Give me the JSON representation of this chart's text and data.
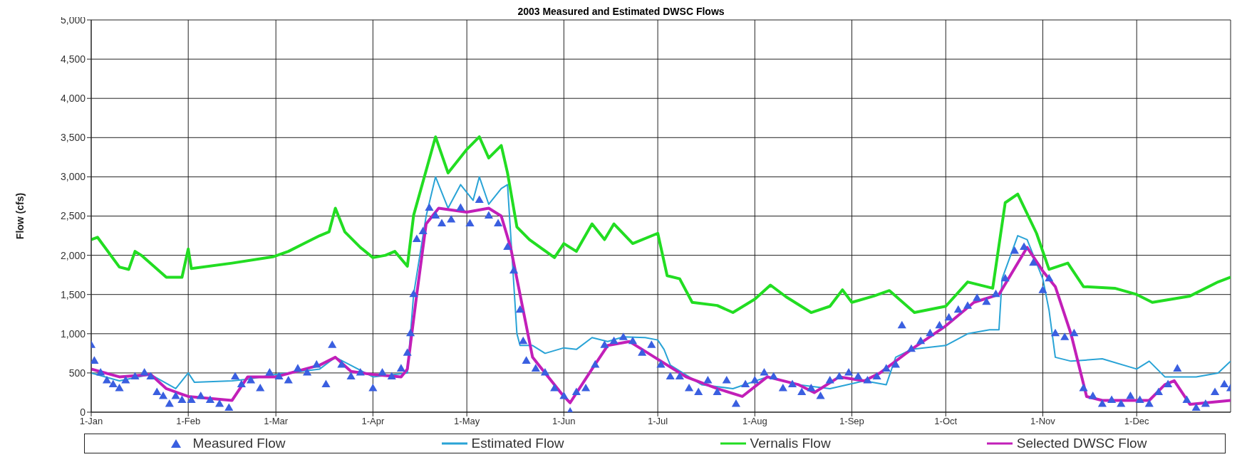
{
  "chart_data": {
    "type": "line",
    "title": "2003 Measured and Estimated DWSC Flows",
    "ylabel": "Flow (cfs)",
    "xlim": [
      "2003-01-01",
      "2003-12-31"
    ],
    "xticks": [
      {
        "value": "2003-01-01",
        "label": "1-Jan"
      },
      {
        "value": "2003-02-01",
        "label": "1-Feb"
      },
      {
        "value": "2003-03-01",
        "label": "1-Mar"
      },
      {
        "value": "2003-04-01",
        "label": "1-Apr"
      },
      {
        "value": "2003-05-01",
        "label": "1-May"
      },
      {
        "value": "2003-06-01",
        "label": "1-Jun"
      },
      {
        "value": "2003-07-01",
        "label": "1-Jul"
      },
      {
        "value": "2003-08-01",
        "label": "1-Aug"
      },
      {
        "value": "2003-09-01",
        "label": "1-Sep"
      },
      {
        "value": "2003-10-01",
        "label": "1-Oct"
      },
      {
        "value": "2003-11-01",
        "label": "1-Nov"
      },
      {
        "value": "2003-12-01",
        "label": "1-Dec"
      }
    ],
    "ylim": [
      0,
      5000
    ],
    "yticks": [
      0,
      500,
      {
        "value": 1000,
        "label": "1,000"
      },
      {
        "value": 1500,
        "label": "1,500"
      },
      {
        "value": 2000,
        "label": "2,000"
      },
      {
        "value": 2500,
        "label": "2,500"
      },
      {
        "value": 3000,
        "label": "3,000"
      },
      {
        "value": 3500,
        "label": "3,500"
      },
      {
        "value": 4000,
        "label": "4,000"
      },
      {
        "value": 4500,
        "label": "4,500"
      },
      {
        "value": 5000,
        "label": "5,000"
      }
    ],
    "grid": true,
    "legend": "bottom",
    "series": [
      {
        "name": "Measured Flow",
        "type": "scatter",
        "marker": "triangle",
        "color": "#3a5fe0",
        "x": [
          "2003-01-01",
          "2003-01-02",
          "2003-01-04",
          "2003-01-06",
          "2003-01-08",
          "2003-01-10",
          "2003-01-12",
          "2003-01-15",
          "2003-01-18",
          "2003-01-20",
          "2003-01-22",
          "2003-01-24",
          "2003-01-26",
          "2003-01-28",
          "2003-01-30",
          "2003-02-02",
          "2003-02-05",
          "2003-02-08",
          "2003-02-11",
          "2003-02-14",
          "2003-02-16",
          "2003-02-18",
          "2003-02-21",
          "2003-02-24",
          "2003-02-27",
          "2003-03-02",
          "2003-03-05",
          "2003-03-08",
          "2003-03-11",
          "2003-03-14",
          "2003-03-17",
          "2003-03-19",
          "2003-03-22",
          "2003-03-25",
          "2003-03-28",
          "2003-04-01",
          "2003-04-04",
          "2003-04-07",
          "2003-04-10",
          "2003-04-12",
          "2003-04-13",
          "2003-04-14",
          "2003-04-15",
          "2003-04-17",
          "2003-04-19",
          "2003-04-21",
          "2003-04-23",
          "2003-04-26",
          "2003-04-29",
          "2003-05-02",
          "2003-05-05",
          "2003-05-08",
          "2003-05-11",
          "2003-05-14",
          "2003-05-16",
          "2003-05-18",
          "2003-05-19",
          "2003-05-20",
          "2003-05-23",
          "2003-05-26",
          "2003-05-29",
          "2003-06-01",
          "2003-06-03",
          "2003-06-05",
          "2003-06-08",
          "2003-06-11",
          "2003-06-14",
          "2003-06-17",
          "2003-06-20",
          "2003-06-23",
          "2003-06-26",
          "2003-06-29",
          "2003-07-02",
          "2003-07-05",
          "2003-07-08",
          "2003-07-11",
          "2003-07-14",
          "2003-07-17",
          "2003-07-20",
          "2003-07-23",
          "2003-07-26",
          "2003-07-29",
          "2003-08-01",
          "2003-08-04",
          "2003-08-07",
          "2003-08-10",
          "2003-08-13",
          "2003-08-16",
          "2003-08-19",
          "2003-08-22",
          "2003-08-25",
          "2003-08-28",
          "2003-08-31",
          "2003-09-03",
          "2003-09-06",
          "2003-09-09",
          "2003-09-12",
          "2003-09-15",
          "2003-09-17",
          "2003-09-20",
          "2003-09-23",
          "2003-09-26",
          "2003-09-29",
          "2003-10-02",
          "2003-10-05",
          "2003-10-08",
          "2003-10-11",
          "2003-10-14",
          "2003-10-17",
          "2003-10-20",
          "2003-10-23",
          "2003-10-26",
          "2003-10-29",
          "2003-11-01",
          "2003-11-03",
          "2003-11-05",
          "2003-11-08",
          "2003-11-11",
          "2003-11-14",
          "2003-11-17",
          "2003-11-20",
          "2003-11-23",
          "2003-11-26",
          "2003-11-29",
          "2003-12-02",
          "2003-12-05",
          "2003-12-08",
          "2003-12-11",
          "2003-12-14",
          "2003-12-17",
          "2003-12-20",
          "2003-12-23",
          "2003-12-26",
          "2003-12-29",
          "2003-12-31"
        ],
        "values": [
          850,
          650,
          500,
          400,
          350,
          300,
          400,
          450,
          500,
          450,
          250,
          200,
          100,
          200,
          150,
          150,
          200,
          150,
          100,
          50,
          450,
          350,
          400,
          300,
          500,
          450,
          400,
          550,
          500,
          600,
          350,
          850,
          600,
          450,
          500,
          300,
          500,
          450,
          550,
          750,
          1000,
          1500,
          2200,
          2300,
          2600,
          2500,
          2400,
          2450,
          2600,
          2400,
          2700,
          2500,
          2400,
          2100,
          1800,
          1300,
          900,
          650,
          550,
          500,
          300,
          200,
          0,
          250,
          300,
          600,
          850,
          900,
          950,
          900,
          750,
          850,
          600,
          450,
          450,
          300,
          250,
          400,
          250,
          400,
          100,
          350,
          400,
          500,
          450,
          300,
          350,
          250,
          300,
          200,
          400,
          450,
          500,
          450,
          400,
          450,
          550,
          600,
          1100,
          800,
          900,
          1000,
          1100,
          1200,
          1300,
          1350,
          1450,
          1400,
          1500,
          1700,
          2050,
          2100,
          1900,
          1550,
          1700,
          1000,
          950,
          1000,
          300,
          200,
          100,
          150,
          100,
          200,
          150,
          100,
          250,
          350,
          550,
          150,
          50,
          100,
          250,
          350,
          300
        ]
      },
      {
        "name": "Estimated Flow",
        "marker": "none",
        "line_style": "solid",
        "color": "#29a3d6",
        "x": [
          "2003-01-01",
          "2003-01-10",
          "2003-01-20",
          "2003-01-28",
          "2003-02-01",
          "2003-02-03",
          "2003-02-15",
          "2003-02-20",
          "2003-03-01",
          "2003-03-15",
          "2003-03-20",
          "2003-04-01",
          "2003-04-12",
          "2003-04-14",
          "2003-04-18",
          "2003-04-21",
          "2003-04-25",
          "2003-04-29",
          "2003-05-03",
          "2003-05-05",
          "2003-05-08",
          "2003-05-12",
          "2003-05-14",
          "2003-05-17",
          "2003-05-18",
          "2003-05-22",
          "2003-05-26",
          "2003-06-01",
          "2003-06-05",
          "2003-06-10",
          "2003-06-15",
          "2003-06-20",
          "2003-06-27",
          "2003-07-01",
          "2003-07-03",
          "2003-07-05",
          "2003-07-15",
          "2003-07-25",
          "2003-08-05",
          "2003-08-15",
          "2003-08-25",
          "2003-09-05",
          "2003-09-12",
          "2003-09-15",
          "2003-09-20",
          "2003-10-01",
          "2003-10-08",
          "2003-10-15",
          "2003-10-18",
          "2003-10-19",
          "2003-10-24",
          "2003-10-27",
          "2003-11-01",
          "2003-11-03",
          "2003-11-05",
          "2003-11-10",
          "2003-11-20",
          "2003-12-01",
          "2003-12-05",
          "2003-12-10",
          "2003-12-20",
          "2003-12-27",
          "2003-12-31"
        ],
        "values": [
          500,
          400,
          480,
          300,
          500,
          380,
          400,
          420,
          480,
          550,
          700,
          450,
          500,
          1500,
          2500,
          3000,
          2600,
          2900,
          2700,
          3000,
          2650,
          2850,
          2900,
          1000,
          850,
          850,
          750,
          820,
          800,
          950,
          900,
          960,
          950,
          920,
          800,
          600,
          350,
          300,
          450,
          350,
          300,
          400,
          350,
          700,
          800,
          850,
          1000,
          1050,
          1050,
          1700,
          2250,
          2200,
          1700,
          1300,
          700,
          650,
          680,
          550,
          650,
          450,
          450,
          500,
          650
        ]
      },
      {
        "name": "Vernalis Flow",
        "marker": "none",
        "line_style": "solid",
        "color": "#22dd22",
        "x": [
          "2003-01-01",
          "2003-01-03",
          "2003-01-10",
          "2003-01-13",
          "2003-01-15",
          "2003-01-17",
          "2003-01-25",
          "2003-01-30",
          "2003-02-01",
          "2003-02-02",
          "2003-02-15",
          "2003-02-28",
          "2003-03-05",
          "2003-03-10",
          "2003-03-15",
          "2003-03-18",
          "2003-03-20",
          "2003-03-23",
          "2003-03-28",
          "2003-04-01",
          "2003-04-05",
          "2003-04-08",
          "2003-04-12",
          "2003-04-14",
          "2003-04-21",
          "2003-04-25",
          "2003-05-01",
          "2003-05-05",
          "2003-05-08",
          "2003-05-12",
          "2003-05-14",
          "2003-05-17",
          "2003-05-21",
          "2003-05-29",
          "2003-06-01",
          "2003-06-05",
          "2003-06-10",
          "2003-06-14",
          "2003-06-17",
          "2003-06-23",
          "2003-07-01",
          "2003-07-04",
          "2003-07-08",
          "2003-07-12",
          "2003-07-20",
          "2003-07-25",
          "2003-08-01",
          "2003-08-06",
          "2003-08-11",
          "2003-08-19",
          "2003-08-25",
          "2003-08-29",
          "2003-09-01",
          "2003-09-08",
          "2003-09-13",
          "2003-09-21",
          "2003-10-01",
          "2003-10-08",
          "2003-10-16",
          "2003-10-20",
          "2003-10-24",
          "2003-10-30",
          "2003-11-03",
          "2003-11-09",
          "2003-11-14",
          "2003-11-24",
          "2003-12-01",
          "2003-12-06",
          "2003-12-18",
          "2003-12-27",
          "2003-12-31"
        ],
        "values": [
          2200,
          2230,
          1850,
          1820,
          2050,
          2000,
          1720,
          1720,
          2080,
          1830,
          1900,
          1980,
          2050,
          2150,
          2250,
          2300,
          2600,
          2300,
          2100,
          1970,
          2000,
          2050,
          1860,
          2510,
          3510,
          3050,
          3350,
          3510,
          3240,
          3400,
          3050,
          2360,
          2200,
          1970,
          2150,
          2050,
          2400,
          2200,
          2400,
          2150,
          2280,
          1740,
          1700,
          1400,
          1360,
          1270,
          1440,
          1620,
          1470,
          1270,
          1350,
          1560,
          1400,
          1480,
          1550,
          1270,
          1350,
          1660,
          1580,
          2670,
          2780,
          2280,
          1820,
          1900,
          1600,
          1580,
          1500,
          1400,
          1480,
          1660,
          1720
        ]
      },
      {
        "name": "Selected DWSC Flow",
        "marker": "none",
        "line_style": "solid",
        "color": "#c21fb8",
        "x": [
          "2003-01-01",
          "2003-01-10",
          "2003-01-20",
          "2003-01-25",
          "2003-02-01",
          "2003-02-15",
          "2003-02-20",
          "2003-03-01",
          "2003-03-15",
          "2003-03-20",
          "2003-03-25",
          "2003-04-01",
          "2003-04-10",
          "2003-04-12",
          "2003-04-15",
          "2003-04-18",
          "2003-04-22",
          "2003-05-01",
          "2003-05-08",
          "2003-05-12",
          "2003-05-15",
          "2003-05-18",
          "2003-05-22",
          "2003-06-01",
          "2003-06-03",
          "2003-06-10",
          "2003-06-15",
          "2003-06-22",
          "2003-06-30",
          "2003-07-10",
          "2003-07-20",
          "2003-07-28",
          "2003-08-05",
          "2003-08-15",
          "2003-08-20",
          "2003-08-28",
          "2003-09-05",
          "2003-09-10",
          "2003-09-20",
          "2003-10-01",
          "2003-10-10",
          "2003-10-18",
          "2003-10-27",
          "2003-11-01",
          "2003-11-05",
          "2003-11-10",
          "2003-11-15",
          "2003-11-20",
          "2003-12-01",
          "2003-12-05",
          "2003-12-10",
          "2003-12-13",
          "2003-12-18",
          "2003-12-31"
        ],
        "values": [
          550,
          450,
          480,
          300,
          200,
          150,
          450,
          450,
          600,
          700,
          520,
          480,
          450,
          550,
          1500,
          2400,
          2600,
          2550,
          2600,
          2500,
          2100,
          1500,
          700,
          200,
          120,
          550,
          850,
          900,
          700,
          450,
          300,
          200,
          450,
          350,
          250,
          450,
          400,
          500,
          800,
          1100,
          1400,
          1500,
          2100,
          1800,
          1600,
          1000,
          200,
          150,
          150,
          150,
          350,
          400,
          100,
          150
        ]
      }
    ]
  }
}
